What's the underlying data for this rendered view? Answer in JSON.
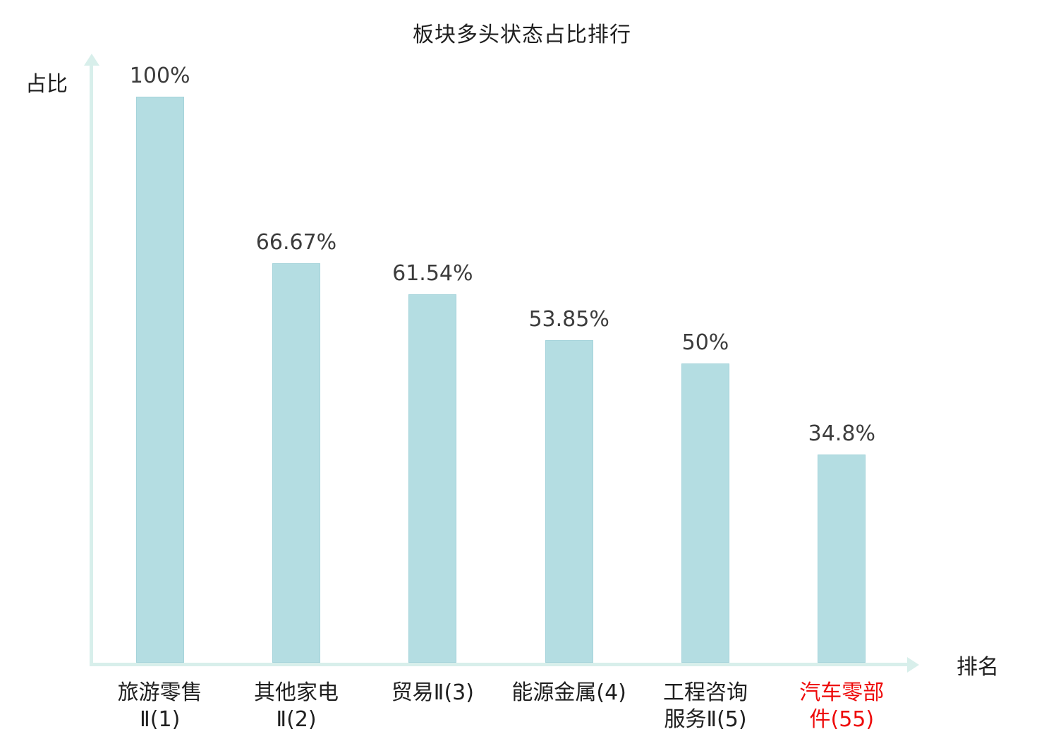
{
  "title": "板块多头状态占比排行",
  "colors": {
    "bar": "#b4dde2",
    "bar_border": "#a4d3da",
    "axis": "#d8efeb",
    "text": "#1f1f1f",
    "value_text": "#3c3c3c",
    "highlight": "#ee0a0a"
  },
  "chart_data": {
    "type": "bar",
    "title": "板块多头状态占比排行",
    "xlabel": "排名",
    "ylabel": "占比",
    "ylim": [
      0,
      100
    ],
    "grid": false,
    "legend": false,
    "categories": [
      "旅游零售Ⅱ(1)",
      "其他家电Ⅱ(2)",
      "贸易Ⅱ(3)",
      "能源金属(4)",
      "工程咨询服务Ⅱ(5)",
      "汽车零部件(55)"
    ],
    "categories_display": [
      "旅游零售\nⅡ(1)",
      "其他家电\nⅡ(2)",
      "贸易Ⅱ(3)",
      "能源金属(4)",
      "工程咨询\n服务Ⅱ(5)",
      "汽车零部\n件(55)"
    ],
    "values": [
      100,
      66.67,
      61.54,
      53.85,
      50,
      34.8
    ],
    "value_labels": [
      "100%",
      "66.67%",
      "61.54%",
      "53.85%",
      "50%",
      "34.8%"
    ],
    "highlight_index": 5
  }
}
